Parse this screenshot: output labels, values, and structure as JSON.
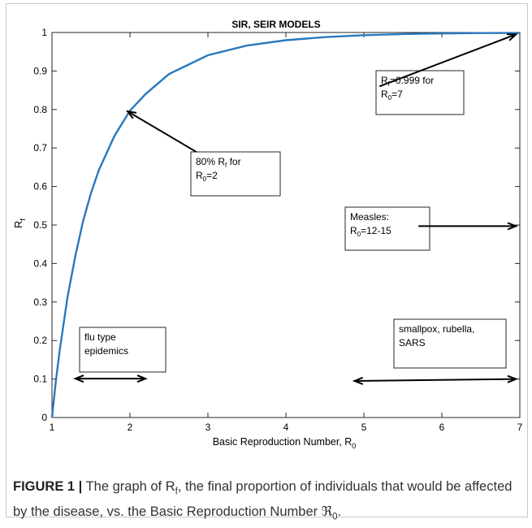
{
  "chart_data": {
    "type": "line",
    "title": "SIR, SEIR MODELS",
    "xlabel": "Basic Reproduction Number, R",
    "xlabel_sub": "0",
    "ylabel": "R",
    "ylabel_sub": "f",
    "xlim": [
      1,
      7
    ],
    "ylim": [
      0,
      1
    ],
    "xticks": [
      "1",
      "2",
      "3",
      "4",
      "5",
      "6",
      "7"
    ],
    "yticks": [
      "0",
      "0.1",
      "0.2",
      "0.3",
      "0.4",
      "0.5",
      "0.6",
      "0.7",
      "0.8",
      "0.9",
      "1"
    ],
    "series": [
      {
        "color": "#2a78bd",
        "x": [
          1.0,
          1.05,
          1.1,
          1.2,
          1.3,
          1.4,
          1.5,
          1.6,
          1.8,
          2.0,
          2.2,
          2.5,
          3.0,
          3.5,
          4.0,
          4.5,
          5.0,
          5.5,
          6.0,
          6.5,
          7.0
        ],
        "y": [
          0.0,
          0.095,
          0.176,
          0.314,
          0.42,
          0.511,
          0.583,
          0.642,
          0.731,
          0.797,
          0.84,
          0.892,
          0.941,
          0.966,
          0.98,
          0.988,
          0.993,
          0.996,
          0.9975,
          0.9985,
          0.999
        ]
      }
    ],
    "annotations": [
      {
        "line1": "R",
        "line1_sub": "f",
        "line1_rest": "=0.999 for",
        "line2": "R",
        "line2_sub": "0",
        "line2_rest": "=7"
      },
      {
        "line1": "80% R",
        "line1_sub": "f",
        "line1_rest": " for",
        "line2": "R",
        "line2_sub": "0",
        "line2_rest": "=2"
      },
      {
        "line1": "Measles:",
        "line1_sub": "",
        "line1_rest": "",
        "line2": "R",
        "line2_sub": "0",
        "line2_rest": "=12-15"
      },
      {
        "line1": "flu type",
        "line1_sub": "",
        "line1_rest": "",
        "line2": "epidemics",
        "line2_sub": "",
        "line2_rest": ""
      },
      {
        "line1": "smallpox, rubella,",
        "line1_sub": "",
        "line1_rest": "",
        "line2": "SARS",
        "line2_sub": "",
        "line2_rest": ""
      }
    ],
    "arrows": [
      {
        "from": [
          5.2,
          0.86
        ],
        "to": [
          6.95,
          0.995
        ],
        "heads": "end"
      },
      {
        "from": [
          2.85,
          0.69
        ],
        "to": [
          1.97,
          0.795
        ],
        "heads": "end"
      },
      {
        "from": [
          5.7,
          0.497
        ],
        "to": [
          6.95,
          0.497
        ],
        "heads": "end"
      },
      {
        "from": [
          1.3,
          0.101
        ],
        "to": [
          2.2,
          0.101
        ],
        "heads": "both"
      },
      {
        "from": [
          4.88,
          0.095
        ],
        "to": [
          6.95,
          0.1
        ],
        "heads": "both"
      }
    ],
    "grid": false,
    "legend": "none"
  },
  "caption": {
    "label": "FIGURE 1 |",
    "text1": " The graph of R",
    "text1_sub": "f",
    "text2": ", the final proportion of individuals that would be affected by the disease, vs. the Basic Reproduction Number ",
    "symbol": "ℜ",
    "symbol_sub": "0",
    "end": "."
  }
}
